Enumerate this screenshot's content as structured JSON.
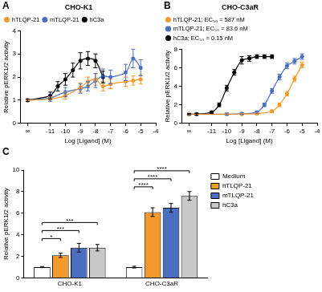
{
  "chart_data": [
    {
      "panel": "A",
      "type": "line",
      "title": "CHO-K1",
      "x_label": "Log [Ligand] (M)",
      "y_label": "Relative pERK1/2 activity",
      "xlim": [
        -13,
        -4
      ],
      "xticks": [
        {
          "value": -12.5,
          "label": "∞"
        },
        -11,
        -10,
        -9,
        -8,
        -7,
        -6,
        -5,
        -4
      ],
      "ylim": [
        0,
        4
      ],
      "yticks": [
        0,
        1,
        2,
        3,
        4
      ],
      "grid": false,
      "legend": "top",
      "marker": "circle",
      "series": [
        {
          "name": "hTLQP-21",
          "color": "#f39a2e",
          "x": [
            -12.5,
            -11,
            -10,
            -9,
            -8.5,
            -8,
            -7.5,
            -7,
            -6,
            -5.5,
            -5
          ],
          "values": [
            1.0,
            1.05,
            1.2,
            1.55,
            1.8,
            1.9,
            1.6,
            1.7,
            1.8,
            1.85,
            1.9
          ],
          "errors": [
            0.05,
            0.1,
            0.15,
            0.2,
            0.2,
            0.25,
            0.2,
            0.2,
            0.2,
            0.2,
            0.2
          ]
        },
        {
          "name": "mTLQP-21",
          "color": "#4a6fc1",
          "x": [
            -12.5,
            -11,
            -10,
            -9,
            -8.5,
            -8,
            -7.5,
            -7,
            -6,
            -5.5,
            -5
          ],
          "values": [
            1.0,
            1.1,
            1.35,
            1.5,
            1.6,
            1.85,
            2.05,
            2.0,
            2.2,
            2.8,
            2.4
          ],
          "errors": [
            0.05,
            0.15,
            0.2,
            0.2,
            0.2,
            0.3,
            0.3,
            0.3,
            0.35,
            0.4,
            0.35
          ]
        },
        {
          "name": "hC3a",
          "color": "#000000",
          "x": [
            -12.5,
            -11,
            -10.5,
            -10,
            -9.5,
            -9,
            -8.5,
            -8,
            -7.5
          ],
          "values": [
            1.0,
            1.2,
            1.6,
            1.9,
            2.3,
            2.7,
            2.8,
            2.7,
            2.0
          ],
          "errors": [
            0.05,
            0.15,
            0.2,
            0.25,
            0.3,
            0.35,
            0.3,
            0.3,
            0.25
          ]
        }
      ]
    },
    {
      "panel": "B",
      "type": "line",
      "title": "CHO-C3aR",
      "x_label": "Log [Ligand] (M)",
      "y_label": "Relative pERK1/2 activity",
      "xlim": [
        -13,
        -4
      ],
      "xticks": [
        {
          "value": -12.5,
          "label": "∞"
        },
        -11,
        -10,
        -9,
        -8,
        -7,
        -6,
        -5,
        -4
      ],
      "ylim": [
        0,
        8
      ],
      "yticks": [
        0,
        2,
        4,
        6,
        8
      ],
      "grid": false,
      "legend": "top",
      "marker": "circle",
      "series": [
        {
          "name": "hTLQP-21; EC₅₀ = 587 nM",
          "color": "#f39a2e",
          "x": [
            -12.5,
            -10,
            -9,
            -8,
            -7,
            -6.5,
            -6,
            -5.5,
            -5
          ],
          "values": [
            1.0,
            1.0,
            1.0,
            1.05,
            1.3,
            2.0,
            3.2,
            4.8,
            6.3
          ],
          "errors": [
            0.05,
            0.1,
            0.1,
            0.1,
            0.15,
            0.2,
            0.25,
            0.3,
            0.3
          ]
        },
        {
          "name": "mTLQP-21; EC₅₀ = 83.6 nM",
          "color": "#4a6fc1",
          "x": [
            -12.5,
            -10,
            -9,
            -8,
            -7.5,
            -7,
            -6.5,
            -6,
            -5.5,
            -5
          ],
          "values": [
            1.0,
            1.0,
            1.05,
            1.2,
            2.0,
            3.5,
            5.0,
            6.2,
            6.7,
            7.2
          ],
          "errors": [
            0.05,
            0.1,
            0.1,
            0.1,
            0.2,
            0.25,
            0.3,
            0.3,
            0.3,
            0.3
          ]
        },
        {
          "name": "hC3a; EC₅₀ = 0.15 nM",
          "color": "#000000",
          "x": [
            -12.5,
            -12,
            -11,
            -10.5,
            -10,
            -9.5,
            -9,
            -8.5,
            -8,
            -7.5,
            -7
          ],
          "values": [
            1.0,
            1.0,
            1.2,
            2.0,
            3.8,
            5.5,
            6.8,
            7.0,
            7.2,
            7.2,
            7.2
          ],
          "errors": [
            0.05,
            0.1,
            0.1,
            0.2,
            0.3,
            0.3,
            0.4,
            0.3,
            0.2,
            0.2,
            0.2
          ]
        }
      ]
    },
    {
      "panel": "C",
      "type": "bar",
      "y_label": "Relative pERK1/2 activity",
      "categories": [
        "CHO-K1",
        "CHO-C3aR"
      ],
      "ylim": [
        0,
        10
      ],
      "yticks": [
        0,
        2,
        4,
        6,
        8,
        10
      ],
      "grid": false,
      "legend": "right",
      "series": [
        {
          "name": "Medium",
          "color": "#ffffff",
          "values": [
            1.0,
            1.0
          ],
          "errors": [
            0.05,
            0.08
          ]
        },
        {
          "name": "hTLQP-21",
          "color": "#f39a2e",
          "values": [
            2.1,
            6.1
          ],
          "errors": [
            0.2,
            0.4
          ]
        },
        {
          "name": "mTLQP-21",
          "color": "#4a6fc1",
          "values": [
            2.8,
            6.5
          ],
          "errors": [
            0.4,
            0.4
          ]
        },
        {
          "name": "hC3a",
          "color": "#c8c8c8",
          "values": [
            2.8,
            7.6
          ],
          "errors": [
            0.3,
            0.4
          ]
        }
      ],
      "annotations": [
        {
          "category": "CHO-K1",
          "from": "Medium",
          "to": "hTLQP-21",
          "text": "*"
        },
        {
          "category": "CHO-K1",
          "from": "Medium",
          "to": "mTLQP-21",
          "text": "***"
        },
        {
          "category": "CHO-K1",
          "from": "Medium",
          "to": "hC3a",
          "text": "***"
        },
        {
          "category": "CHO-C3aR",
          "from": "Medium",
          "to": "hTLQP-21",
          "text": "****"
        },
        {
          "category": "CHO-C3aR",
          "from": "Medium",
          "to": "mTLQP-21",
          "text": "****"
        },
        {
          "category": "CHO-C3aR",
          "from": "Medium",
          "to": "hC3a",
          "text": "****"
        }
      ]
    }
  ]
}
